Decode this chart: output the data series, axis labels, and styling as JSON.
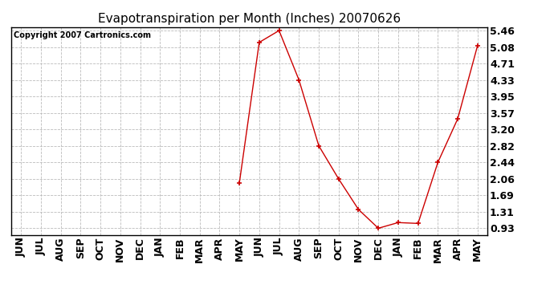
{
  "title": "Evapotranspiration per Month (Inches) 20070626",
  "copyright": "Copyright 2007 Cartronics.com",
  "months": [
    "JUN",
    "JUL",
    "AUG",
    "SEP",
    "OCT",
    "NOV",
    "DEC",
    "JAN",
    "FEB",
    "MAR",
    "APR",
    "MAY",
    "JUN",
    "JUL",
    "AUG",
    "SEP",
    "OCT",
    "NOV",
    "DEC",
    "JAN",
    "FEB",
    "MAR",
    "APR",
    "MAY"
  ],
  "values": [
    null,
    null,
    null,
    null,
    null,
    null,
    null,
    null,
    null,
    null,
    null,
    1.97,
    5.19,
    5.46,
    4.33,
    2.82,
    2.06,
    1.36,
    0.93,
    1.06,
    1.04,
    2.44,
    3.44,
    5.12
  ],
  "yticks": [
    0.93,
    1.31,
    1.69,
    2.06,
    2.44,
    2.82,
    3.2,
    3.57,
    3.95,
    4.33,
    4.71,
    5.08,
    5.46
  ],
  "line_color": "#cc0000",
  "marker_color": "#cc0000",
  "bg_color": "#ffffff",
  "grid_color": "#bbbbbb",
  "title_fontsize": 11,
  "copyright_fontsize": 7,
  "tick_fontsize": 9,
  "ylim_min": 0.78,
  "ylim_max": 5.54
}
